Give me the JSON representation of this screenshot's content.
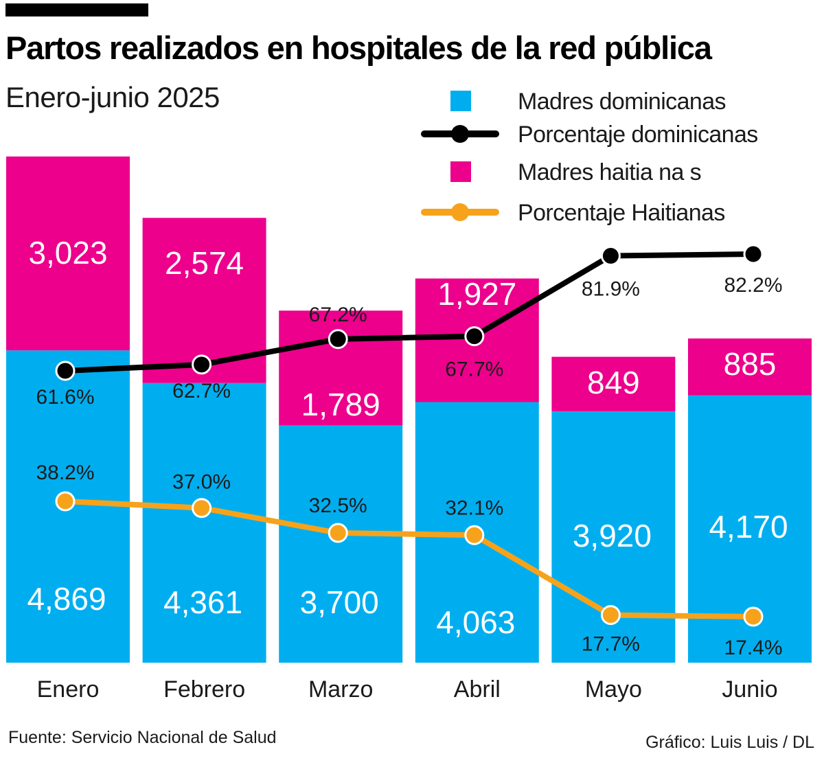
{
  "title": "Partos realizados en hospitales de la red pública",
  "subtitle": "Enero-junio 2025",
  "source": "Fuente:  Servicio Nacional de Salud",
  "credit": "Gráfico: Luis Luis / DL",
  "colors": {
    "dominicanas": "#00aeef",
    "haitianas": "#ec008c",
    "pct_dominicanas": "#000000",
    "pct_haitianas": "#f7a21b"
  },
  "chart_data": {
    "type": "bar",
    "stacked": true,
    "title": "Partos realizados en hospitales de la red pública",
    "subtitle": "Enero-junio 2025",
    "categories": [
      "Enero",
      "Febrero",
      "Marzo",
      "Abril",
      "Mayo",
      "Junio"
    ],
    "series": [
      {
        "name": "Madres dominicanas",
        "type": "bar",
        "values": [
          4869,
          4361,
          3700,
          4063,
          3920,
          4170
        ],
        "labels": [
          "4,869",
          "4,361",
          "3,700",
          "4,063",
          "3,920",
          "4,170"
        ]
      },
      {
        "name": "Madres haitianas",
        "type": "bar",
        "values": [
          3023,
          2574,
          1789,
          1927,
          849,
          885
        ],
        "labels": [
          "3,023",
          "2,574",
          "1,789",
          "1,927",
          "849",
          "885"
        ]
      },
      {
        "name": "Porcentaje dominicanas",
        "type": "line",
        "unit": "%",
        "values": [
          61.6,
          62.7,
          67.2,
          67.7,
          81.9,
          82.2
        ],
        "labels": [
          "61.6%",
          "62.7%",
          "67.2%",
          "67.7%",
          "81.9%",
          "82.2%"
        ]
      },
      {
        "name": "Porcentaje Haitianas",
        "type": "line",
        "unit": "%",
        "values": [
          38.2,
          37.0,
          32.5,
          32.1,
          17.7,
          17.4
        ],
        "labels": [
          "38.2%",
          "37.0%",
          "32.5%",
          "32.1%",
          "17.7%",
          "17.4%"
        ]
      }
    ],
    "legend": {
      "position": "top-right",
      "items": [
        "Madres dominicanas",
        "Porcentaje dominicanas",
        "Madres haitia na s",
        "Porcentaje Haitianas"
      ]
    },
    "grid": false
  }
}
